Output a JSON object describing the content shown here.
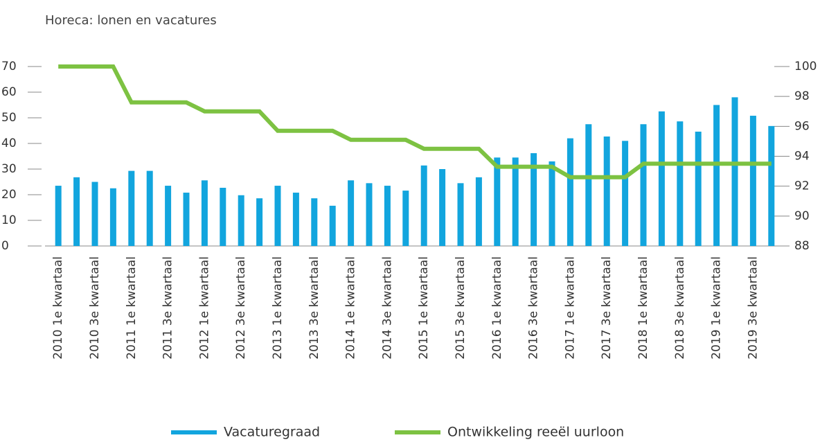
{
  "chart_data": {
    "type": "bar_line",
    "title": "Horeca: lonen en vacatures",
    "categories": [
      "2010 1e kwartaal",
      null,
      "2010 3e kwartaal",
      null,
      "2011 1e kwartaal",
      null,
      "2011 3e kwartaal",
      null,
      "2012 1e kwartaal",
      null,
      "2012 3e kwartaal",
      null,
      "2013 1e kwartaal",
      null,
      "2013 3e kwartaal",
      null,
      "2014 1e kwartaal",
      null,
      "2014 3e kwartaal",
      null,
      "2015 1e kwartaal",
      null,
      "2015 3e kwartaal",
      null,
      "2016 1e kwartaal",
      null,
      "2016 3e kwartaal",
      null,
      "2017 1e kwartaal",
      null,
      "2017 3e kwartaal",
      null,
      "2018 1e kwartaal",
      null,
      "2018 3e kwartaal",
      null,
      "2019 1e kwartaal",
      null,
      "2019 3e kwartaal",
      null
    ],
    "series": [
      {
        "name": "Vacaturegraad",
        "color": "#12a5de",
        "type": "bar",
        "values": [
          23.5,
          26.8,
          25,
          22.5,
          29.3,
          29.3,
          23.5,
          20.8,
          25.6,
          22.7,
          19.8,
          18.6,
          23.5,
          20.8,
          18.6,
          15.7,
          25.6,
          24.5,
          23.5,
          21.6,
          31.4,
          30,
          24.5,
          26.8,
          34.5,
          34.5,
          36.2,
          33,
          42,
          47.5,
          42.7,
          41,
          47.5,
          52.5,
          48.6,
          44.6,
          55,
          58,
          50.8,
          46.8
        ]
      },
      {
        "name": "Ontwikkeling reeël uurloon",
        "color": "#7dc242",
        "type": "line",
        "axis": "y2",
        "values": [
          100,
          100,
          100,
          100,
          97.6,
          97.6,
          97.6,
          97.6,
          97,
          97,
          97,
          97,
          95.7,
          95.7,
          95.7,
          95.7,
          95.1,
          95.1,
          95.1,
          95.1,
          94.5,
          94.5,
          94.5,
          94.5,
          93.3,
          93.3,
          93.3,
          93.3,
          92.6,
          92.6,
          92.6,
          92.6,
          93.5,
          93.5,
          93.5,
          93.5,
          93.5,
          93.5,
          93.5,
          93.5
        ]
      }
    ],
    "ylim": [
      0,
      70
    ],
    "yticks": [
      0,
      10,
      20,
      30,
      40,
      50,
      60,
      70
    ],
    "y2lim": [
      88,
      100
    ],
    "y2ticks": [
      88,
      90,
      92,
      94,
      96,
      98,
      100
    ],
    "legend": "bottom"
  }
}
